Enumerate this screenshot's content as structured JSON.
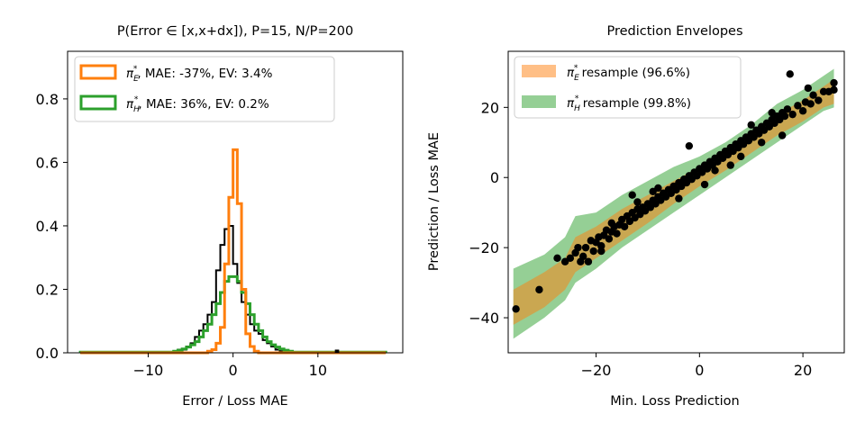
{
  "chart_data": [
    {
      "type": "histogram",
      "title": "P(Error ∈ [x,x+dx]), P=15, N/P=200",
      "xlabel": "Error / Loss MAE",
      "ylabel": "",
      "xlim": [
        -19.5,
        20
      ],
      "ylim": [
        0,
        0.95
      ],
      "xticks": [
        -10,
        0,
        10
      ],
      "xtick_labels": [
        "−10",
        "0",
        "10"
      ],
      "yticks": [
        0.0,
        0.2,
        0.4,
        0.6,
        0.8
      ],
      "ytick_labels": [
        "0.0",
        "0.2",
        "0.4",
        "0.6",
        "0.8"
      ],
      "legend_position": "upper-left",
      "series": [
        {
          "name": "black",
          "legend": null,
          "color": "#000000",
          "edges": [
            -18,
            -6.5,
            -6,
            -5.5,
            -5,
            -4.5,
            -4,
            -3.5,
            -3,
            -2.5,
            -2,
            -1.5,
            -1,
            -0.5,
            0,
            0.5,
            1,
            1.5,
            2,
            2.5,
            3,
            3.5,
            4,
            4.5,
            5,
            5.5,
            6,
            18
          ],
          "values": [
            0,
            0.01,
            0.01,
            0.02,
            0.03,
            0.05,
            0.07,
            0.09,
            0.12,
            0.16,
            0.26,
            0.34,
            0.39,
            0.4,
            0.28,
            0.22,
            0.16,
            0.12,
            0.09,
            0.07,
            0.06,
            0.04,
            0.03,
            0.02,
            0.01,
            0.005,
            0
          ]
        },
        {
          "name": "pi_E",
          "legend": {
            "symbol": "π",
            "sub": "E",
            "sup": "*",
            "text": ", MAE: -37%, EV: 3.4%"
          },
          "color": "#ff7f0e",
          "edges": [
            -18,
            -3,
            -2.5,
            -2,
            -1.5,
            -1,
            -0.5,
            0,
            0.5,
            1,
            1.5,
            2,
            2.5,
            3,
            18
          ],
          "values": [
            0,
            0.005,
            0.01,
            0.03,
            0.08,
            0.28,
            0.49,
            0.64,
            0.47,
            0.2,
            0.06,
            0.02,
            0.005,
            0
          ]
        },
        {
          "name": "pi_H",
          "legend": {
            "symbol": "π",
            "sub": "H",
            "sup": "*",
            "text": ", MAE: 36%, EV: 0.2%"
          },
          "color": "#2ca02c",
          "edges": [
            -18,
            -7,
            -6.5,
            -6,
            -5.5,
            -5,
            -4.5,
            -4,
            -3.5,
            -3,
            -2.5,
            -2,
            -1.5,
            -1,
            -0.5,
            0,
            0.5,
            1,
            1.5,
            2,
            2.5,
            3,
            3.5,
            4,
            4.5,
            5,
            5.5,
            6,
            6.5,
            7,
            18
          ],
          "values": [
            0.002,
            0.005,
            0.008,
            0.012,
            0.018,
            0.025,
            0.035,
            0.05,
            0.07,
            0.09,
            0.12,
            0.155,
            0.19,
            0.225,
            0.24,
            0.24,
            0.225,
            0.19,
            0.155,
            0.12,
            0.09,
            0.07,
            0.05,
            0.035,
            0.025,
            0.018,
            0.012,
            0.008,
            0.005,
            0.002
          ]
        }
      ],
      "outlier_bar": {
        "x": [
          12,
          12.5
        ],
        "value": 0.01,
        "color": "#000000"
      }
    },
    {
      "type": "scatter",
      "title": "Prediction Envelopes",
      "xlabel": "Min. Loss Prediction",
      "ylabel": "Prediction / Loss MAE",
      "xlim": [
        -37,
        28
      ],
      "ylim": [
        -50,
        36
      ],
      "xticks": [
        -20,
        0,
        20
      ],
      "xtick_labels": [
        "−20",
        "0",
        "20"
      ],
      "yticks": [
        -40,
        -20,
        0,
        20
      ],
      "ytick_labels": [
        "−40",
        "−20",
        "0",
        "20"
      ],
      "legend_position": "upper-left",
      "envelopes": [
        {
          "name": "pi_E resample",
          "legend": {
            "symbol": "π",
            "sub": "E",
            "sup": "*",
            "text": " resample (96.6%)"
          },
          "color": "#ff7f0e",
          "opacity": 0.5,
          "x": [
            -36,
            -30,
            -26,
            -24,
            -20,
            -15,
            -10,
            -5,
            0,
            5,
            10,
            15,
            20,
            24,
            26
          ],
          "lower": [
            -42,
            -37,
            -32,
            -27,
            -23,
            -18,
            -13,
            -7.5,
            -2.5,
            2,
            7,
            12,
            16,
            20,
            21
          ],
          "upper": [
            -32,
            -27,
            -23,
            -17,
            -14,
            -9,
            -5,
            -1,
            3,
            8,
            13,
            18,
            22,
            26,
            28
          ]
        },
        {
          "name": "pi_H resample",
          "legend": {
            "symbol": "π",
            "sub": "H",
            "sup": "*",
            "text": " resample (99.8%)"
          },
          "color": "#2ca02c",
          "opacity": 0.5,
          "x": [
            -36,
            -30,
            -26,
            -24,
            -20,
            -15,
            -10,
            -5,
            0,
            5,
            10,
            15,
            20,
            24,
            26
          ],
          "lower": [
            -46,
            -40,
            -35,
            -30,
            -26,
            -20,
            -15,
            -10,
            -5,
            0,
            5,
            10,
            15,
            19,
            20
          ],
          "upper": [
            -26,
            -22,
            -17,
            -11,
            -10,
            -5,
            -1,
            3,
            6,
            10,
            15,
            21,
            25,
            29,
            31
          ]
        }
      ],
      "points_color": "#000000",
      "points": [
        [
          -35.5,
          -37.5
        ],
        [
          -31,
          -32
        ],
        [
          -26,
          -24
        ],
        [
          -25,
          -23
        ],
        [
          -24,
          -21.5
        ],
        [
          -23.5,
          -20
        ],
        [
          -23,
          -24
        ],
        [
          -22.5,
          -22.5
        ],
        [
          -22,
          -20
        ],
        [
          -21.5,
          -24
        ],
        [
          -21,
          -18
        ],
        [
          -20.5,
          -21
        ],
        [
          -20,
          -18.5
        ],
        [
          -19.5,
          -17
        ],
        [
          -19,
          -19.5
        ],
        [
          -18.5,
          -16.5
        ],
        [
          -18,
          -15
        ],
        [
          -17.5,
          -17.5
        ],
        [
          -17,
          -15.5
        ],
        [
          -16.5,
          -14
        ],
        [
          -16,
          -16
        ],
        [
          -15.5,
          -13.5
        ],
        [
          -15,
          -12
        ],
        [
          -14.5,
          -14
        ],
        [
          -14,
          -11
        ],
        [
          -13.5,
          -12.5
        ],
        [
          -13,
          -10
        ],
        [
          -12.5,
          -11.5
        ],
        [
          -12,
          -9
        ],
        [
          -11.5,
          -10.5
        ],
        [
          -11,
          -8.5
        ],
        [
          -10.5,
          -9.5
        ],
        [
          -10,
          -7.5
        ],
        [
          -9.5,
          -8.5
        ],
        [
          -9,
          -6.5
        ],
        [
          -8.5,
          -7.5
        ],
        [
          -8,
          -5.5
        ],
        [
          -7.5,
          -6.5
        ],
        [
          -7,
          -4.5
        ],
        [
          -6.5,
          -5.5
        ],
        [
          -6,
          -3.5
        ],
        [
          -5.5,
          -4.5
        ],
        [
          -5,
          -2.5
        ],
        [
          -4.5,
          -3.5
        ],
        [
          -4,
          -1.5
        ],
        [
          -3.5,
          -2.5
        ],
        [
          -3,
          -0.5
        ],
        [
          -2.5,
          -1.5
        ],
        [
          -2,
          0.5
        ],
        [
          -1.5,
          -0.5
        ],
        [
          -1,
          1.5
        ],
        [
          -0.5,
          0.5
        ],
        [
          0,
          2.5
        ],
        [
          0.5,
          1.5
        ],
        [
          1,
          3.5
        ],
        [
          1.5,
          2.5
        ],
        [
          2,
          4.5
        ],
        [
          2.5,
          3.5
        ],
        [
          3,
          5.5
        ],
        [
          3.5,
          4.5
        ],
        [
          4,
          6.5
        ],
        [
          4.5,
          5.5
        ],
        [
          5,
          7.5
        ],
        [
          5.5,
          6.5
        ],
        [
          6,
          8.5
        ],
        [
          6.5,
          7.5
        ],
        [
          7,
          9.5
        ],
        [
          7.5,
          8.5
        ],
        [
          8,
          10.5
        ],
        [
          8.5,
          9.5
        ],
        [
          9,
          11.5
        ],
        [
          9.5,
          10.5
        ],
        [
          10,
          12.5
        ],
        [
          10.5,
          11.5
        ],
        [
          11,
          13.5
        ],
        [
          11.5,
          12.5
        ],
        [
          12,
          14.5
        ],
        [
          12.5,
          13.5
        ],
        [
          13,
          15.5
        ],
        [
          13.5,
          14.5
        ],
        [
          14,
          16.5
        ],
        [
          14.5,
          15.5
        ],
        [
          15,
          17.5
        ],
        [
          15.5,
          16.5
        ],
        [
          16,
          18.5
        ],
        [
          16.5,
          17.5
        ],
        [
          17,
          19.5
        ],
        [
          18,
          18
        ],
        [
          19,
          20.5
        ],
        [
          20,
          19
        ],
        [
          20.5,
          21.5
        ],
        [
          21.5,
          21
        ],
        [
          22,
          23.5
        ],
        [
          23,
          22
        ],
        [
          24,
          24.5
        ],
        [
          26,
          25
        ],
        [
          26,
          27
        ],
        [
          17.5,
          29.5
        ],
        [
          21,
          25.5
        ],
        [
          -2,
          9
        ],
        [
          -12,
          -7
        ],
        [
          -17,
          -13
        ],
        [
          -8,
          -3
        ],
        [
          3,
          2
        ],
        [
          10,
          15
        ],
        [
          6,
          3.5
        ],
        [
          -27.5,
          -23
        ],
        [
          -13,
          -5
        ],
        [
          -19,
          -21
        ],
        [
          14,
          18.5
        ],
        [
          25,
          24.5
        ],
        [
          -9,
          -4
        ],
        [
          1,
          -2
        ],
        [
          -4,
          -6
        ],
        [
          8,
          6
        ],
        [
          12,
          10
        ],
        [
          16,
          12
        ]
      ]
    }
  ]
}
